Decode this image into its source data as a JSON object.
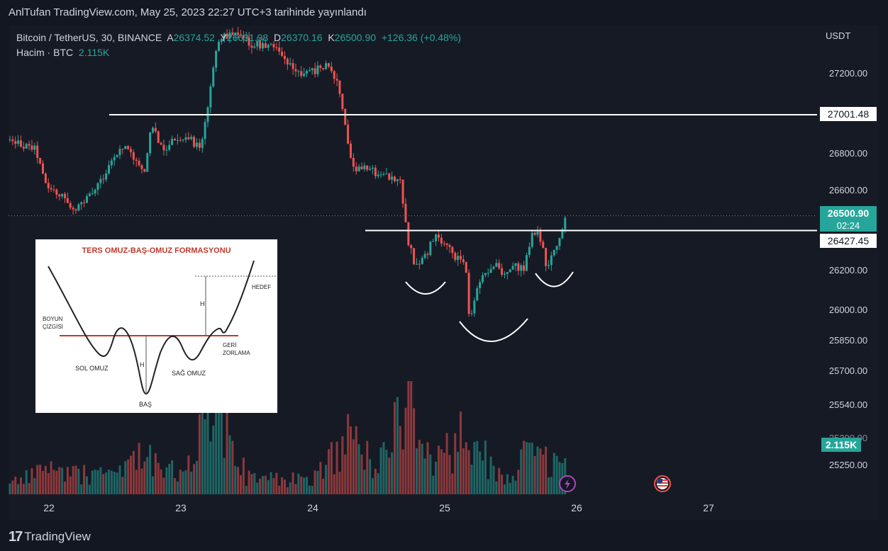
{
  "header": {
    "attribution": "AnlTufan TradingView.com, May 25, 2023 22:27 UTC+3 tarihinde yayınlandı"
  },
  "legend": {
    "symbol": "Bitcoin / TetherUS, 30, BINANCE",
    "o_label": "A",
    "o": "26374.52",
    "h_label": "Y",
    "h": "26631.98",
    "l_label": "D",
    "l": "26370.16",
    "c_label": "K",
    "c": "26500.90",
    "change": "+126.36 (+0.48%)",
    "volume_label": "Hacim · BTC",
    "volume": "2.115K"
  },
  "chart_data": {
    "type": "candlestick",
    "symbol": "Bitcoin / TetherUS, 30, BINANCE",
    "currency": "USDT",
    "price_ticks": [
      "27200.00",
      "26800.00",
      "26600.00",
      "26200.00",
      "26000.00",
      "25850.00",
      "25700.00",
      "25540.00",
      "25250.00"
    ],
    "partially_hidden_tick": "25390.00",
    "x_ticks": [
      "22",
      "23",
      "24",
      "25",
      "26",
      "27"
    ],
    "last_price": "26500.90",
    "countdown": "02:24",
    "volume_badge": "2.115K",
    "horizontal_lines": [
      {
        "price": 27001.48,
        "label": "27001.48"
      },
      {
        "price": 26427.45,
        "label": "26427.45"
      }
    ],
    "close_anchors": [
      {
        "t": 21.6,
        "c": 26880
      },
      {
        "t": 21.75,
        "c": 26860
      },
      {
        "t": 21.9,
        "c": 26830
      },
      {
        "t": 21.98,
        "c": 26640
      },
      {
        "t": 22.1,
        "c": 26600
      },
      {
        "t": 22.2,
        "c": 26530
      },
      {
        "t": 22.32,
        "c": 26600
      },
      {
        "t": 22.45,
        "c": 26740
      },
      {
        "t": 22.55,
        "c": 26850
      },
      {
        "t": 22.62,
        "c": 26820
      },
      {
        "t": 22.72,
        "c": 26700
      },
      {
        "t": 22.78,
        "c": 26960
      },
      {
        "t": 22.86,
        "c": 26820
      },
      {
        "t": 22.95,
        "c": 26880
      },
      {
        "t": 23.05,
        "c": 26900
      },
      {
        "t": 23.15,
        "c": 26820
      },
      {
        "t": 23.22,
        "c": 27100
      },
      {
        "t": 23.28,
        "c": 27380
      },
      {
        "t": 23.38,
        "c": 27400
      },
      {
        "t": 23.55,
        "c": 27350
      },
      {
        "t": 23.7,
        "c": 27350
      },
      {
        "t": 23.82,
        "c": 27240
      },
      {
        "t": 23.95,
        "c": 27200
      },
      {
        "t": 24.1,
        "c": 27250
      },
      {
        "t": 24.2,
        "c": 27140
      },
      {
        "t": 24.25,
        "c": 26920
      },
      {
        "t": 24.3,
        "c": 26740
      },
      {
        "t": 24.4,
        "c": 26730
      },
      {
        "t": 24.55,
        "c": 26700
      },
      {
        "t": 24.66,
        "c": 26680
      },
      {
        "t": 24.72,
        "c": 26380
      },
      {
        "t": 24.78,
        "c": 26250
      },
      {
        "t": 24.85,
        "c": 26300
      },
      {
        "t": 24.93,
        "c": 26400
      },
      {
        "t": 25.0,
        "c": 26350
      },
      {
        "t": 25.08,
        "c": 26300
      },
      {
        "t": 25.16,
        "c": 26250
      },
      {
        "t": 25.19,
        "c": 25950
      },
      {
        "t": 25.23,
        "c": 26120
      },
      {
        "t": 25.3,
        "c": 26220
      },
      {
        "t": 25.38,
        "c": 26260
      },
      {
        "t": 25.45,
        "c": 26200
      },
      {
        "t": 25.52,
        "c": 26250
      },
      {
        "t": 25.6,
        "c": 26230
      },
      {
        "t": 25.67,
        "c": 26430
      },
      {
        "t": 25.72,
        "c": 26400
      },
      {
        "t": 25.77,
        "c": 26250
      },
      {
        "t": 25.82,
        "c": 26300
      },
      {
        "t": 25.88,
        "c": 26400
      },
      {
        "t": 25.915,
        "c": 26500.9
      }
    ],
    "volume_anchors": [
      {
        "t": 21.6,
        "v": 0.15
      },
      {
        "t": 22.0,
        "v": 0.25
      },
      {
        "t": 22.5,
        "v": 0.18
      },
      {
        "t": 22.75,
        "v": 0.45
      },
      {
        "t": 23.0,
        "v": 0.2
      },
      {
        "t": 23.27,
        "v": 0.9
      },
      {
        "t": 23.5,
        "v": 0.2
      },
      {
        "t": 24.0,
        "v": 0.15
      },
      {
        "t": 24.26,
        "v": 0.6
      },
      {
        "t": 24.5,
        "v": 0.3
      },
      {
        "t": 24.72,
        "v": 1.0
      },
      {
        "t": 24.9,
        "v": 0.3
      },
      {
        "t": 25.19,
        "v": 0.7
      },
      {
        "t": 25.4,
        "v": 0.2
      },
      {
        "t": 25.68,
        "v": 0.45
      },
      {
        "t": 25.8,
        "v": 0.3
      },
      {
        "t": 25.915,
        "v": 0.45
      }
    ],
    "annotations": [
      "left-shoulder-arc",
      "head-arc",
      "right-shoulder-arc"
    ]
  },
  "inset": {
    "title": "TERS OMUZ-BAŞ-OMUZ FORMASYONU",
    "labels": {
      "neckline": [
        "BOYUN",
        "ÇİZGİSİ"
      ],
      "left_shoulder": "SOL OMUZ",
      "head": "BAŞ",
      "right_shoulder": "SAĞ OMUZ",
      "retest": [
        "GERİ",
        "ZORLAMA"
      ],
      "target": "HEDEF",
      "height_upper": "H",
      "height_lower": "H"
    }
  },
  "icons": {
    "bolt": "lightning-icon",
    "flag": "us-flag-icon"
  },
  "footer": {
    "logo_mark": "17",
    "brand": "TradingView"
  },
  "colors": {
    "up": "#26a69a",
    "down": "#ef5350",
    "background": "#161a25",
    "accent_label": "#26a69a"
  }
}
